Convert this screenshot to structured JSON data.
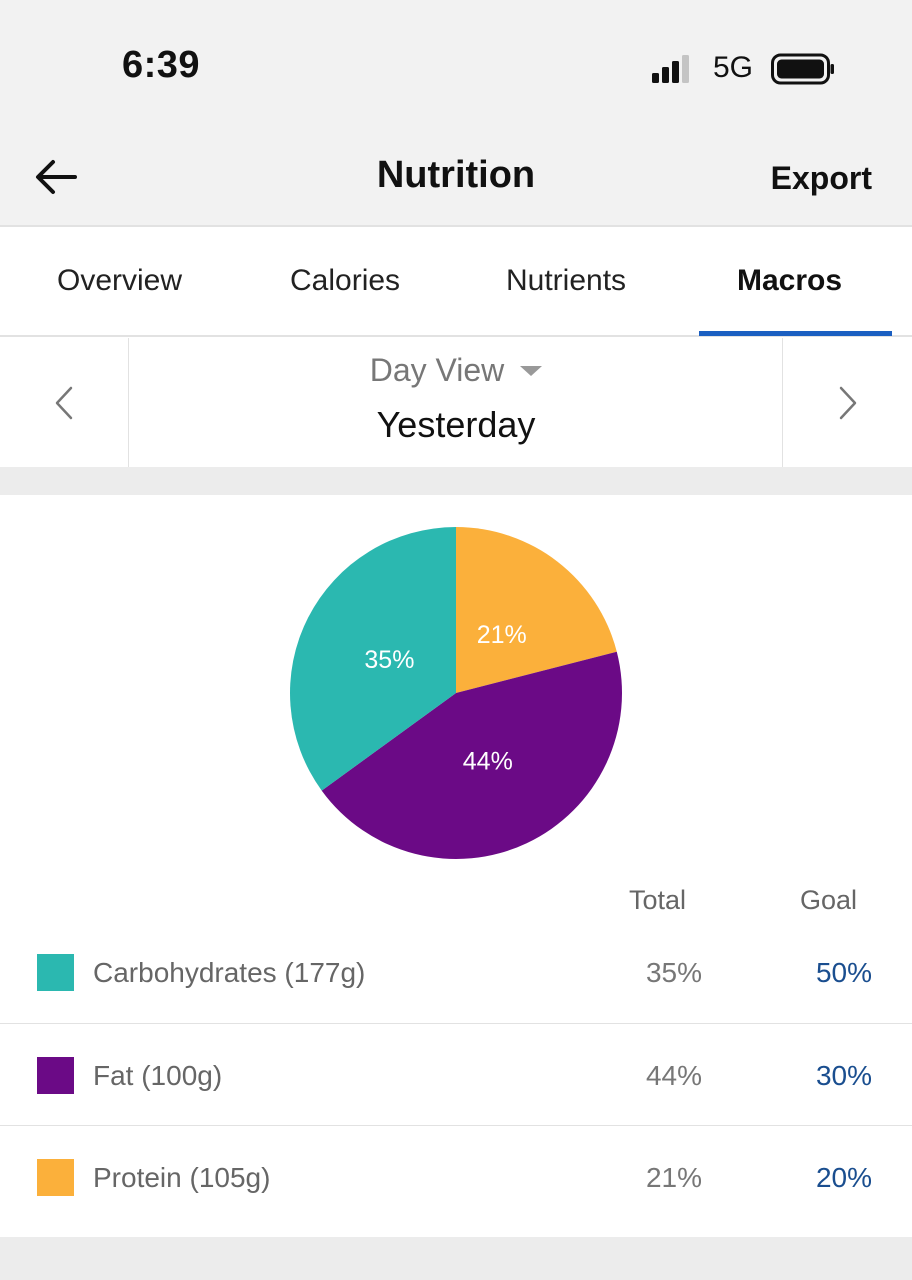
{
  "status": {
    "time": "6:39",
    "network": "5G"
  },
  "nav": {
    "title": "Nutrition",
    "export_label": "Export"
  },
  "tabs": [
    {
      "label": "Overview",
      "active": false
    },
    {
      "label": "Calories",
      "active": false
    },
    {
      "label": "Nutrients",
      "active": false
    },
    {
      "label": "Macros",
      "active": true
    }
  ],
  "date_nav": {
    "view_label": "Day View",
    "date_label": "Yesterday"
  },
  "colors": {
    "carbs": "#2bb8b0",
    "fat": "#6b0a86",
    "protein": "#fbb03b",
    "accent": "#1b5fc1",
    "goal_text": "#1a4e8f"
  },
  "table": {
    "total_header": "Total",
    "goal_header": "Goal"
  },
  "macros": [
    {
      "name": "Carbohydrates (177g)",
      "total": "35%",
      "goal": "50%",
      "color": "#2bb8b0"
    },
    {
      "name": "Fat (100g)",
      "total": "44%",
      "goal": "30%",
      "color": "#6b0a86"
    },
    {
      "name": "Protein (105g)",
      "total": "21%",
      "goal": "20%",
      "color": "#fbb03b"
    }
  ],
  "chart_data": {
    "type": "pie",
    "start": "12 o'clock, clockwise",
    "slices": [
      {
        "name": "Protein",
        "value": 21,
        "label": "21%",
        "color": "#fbb03b"
      },
      {
        "name": "Fat",
        "value": 44,
        "label": "44%",
        "color": "#6b0a86"
      },
      {
        "name": "Carbohydrates",
        "value": 35,
        "label": "35%",
        "color": "#2bb8b0"
      }
    ]
  }
}
